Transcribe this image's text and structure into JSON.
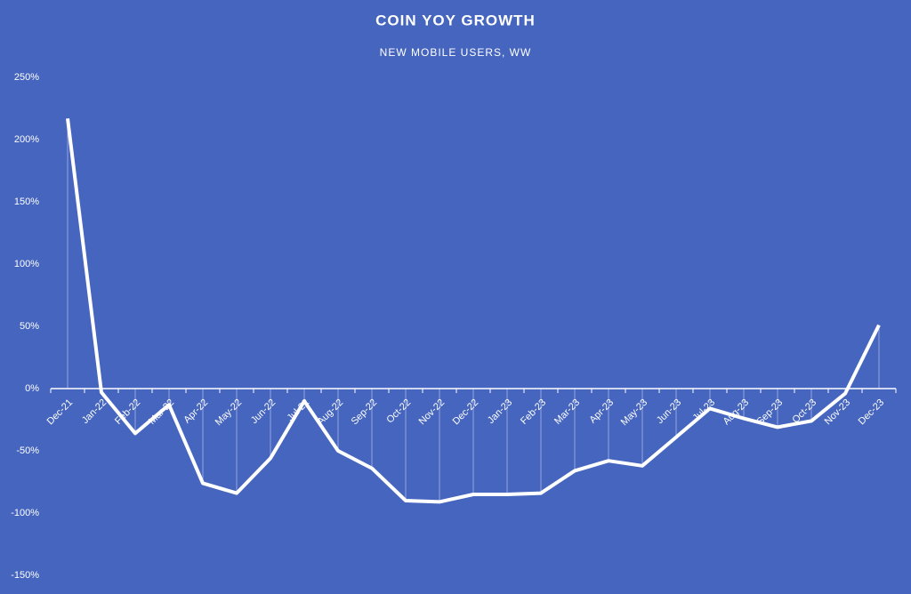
{
  "chart_data": {
    "type": "line",
    "title": "COIN YOY GROWTH",
    "subtitle": "NEW MOBILE USERS, WW",
    "categories": [
      "Dec-21",
      "Jan-22",
      "Feb-22",
      "Mar-22",
      "Apr-22",
      "May-22",
      "Jun-22",
      "Jul-22",
      "Aug-22",
      "Sep-22",
      "Oct-22",
      "Nov-22",
      "Dec-22",
      "Jan-23",
      "Feb-23",
      "Mar-23",
      "Apr-23",
      "May-23",
      "Jun-23",
      "Jul-23",
      "Aug-23",
      "Sep-23",
      "Oct-23",
      "Nov-23",
      "Dec-23"
    ],
    "values": [
      217,
      -3,
      -36,
      -13,
      -76,
      -84,
      -56,
      -10,
      -50,
      -64,
      -90,
      -91,
      -85,
      -85,
      -84,
      -66,
      -58,
      -62,
      -39,
      -16,
      -24,
      -31,
      -26,
      -4,
      51
    ],
    "color": "#ffffff",
    "ylim": [
      -150,
      250
    ],
    "yticks": [
      {
        "value": -150,
        "label": "-150%"
      },
      {
        "value": -100,
        "label": "-100%"
      },
      {
        "value": -50,
        "label": "-50%"
      },
      {
        "value": 0,
        "label": "0%"
      },
      {
        "value": 50,
        "label": "50%"
      },
      {
        "value": 100,
        "label": "100%"
      },
      {
        "value": 150,
        "label": "150%"
      },
      {
        "value": 200,
        "label": "200%"
      },
      {
        "value": 250,
        "label": "250%"
      }
    ],
    "drop_lines": true
  }
}
